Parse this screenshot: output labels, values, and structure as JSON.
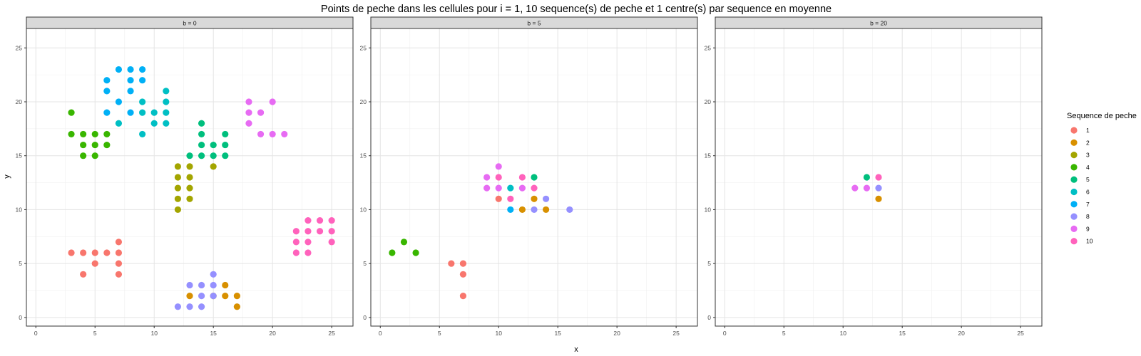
{
  "chart_data": {
    "type": "scatter",
    "title": "Points de peche dans les cellules pour i = 1, 10 sequence(s) de peche et 1 centre(s) par sequence en moyenne",
    "xlabel": "x",
    "ylabel": "y",
    "xlim": [
      -0.8,
      26.8
    ],
    "ylim": [
      -0.8,
      26.8
    ],
    "xticks": [
      0,
      5,
      10,
      15,
      20,
      25
    ],
    "yticks": [
      0,
      5,
      10,
      15,
      20,
      25
    ],
    "grid": true,
    "legend": {
      "title": "Sequence de peche",
      "position": "right"
    },
    "series_colors": {
      "1": "#F8766D",
      "2": "#D89000",
      "3": "#A3A500",
      "4": "#39B600",
      "5": "#00BF7D",
      "6": "#00BFC4",
      "7": "#00B0F6",
      "8": "#9590FF",
      "9": "#E76BF3",
      "10": "#FF62BC"
    },
    "panels": [
      {
        "label": "b = 0",
        "series": [
          {
            "name": "1",
            "points": [
              [
                3,
                6
              ],
              [
                4,
                6
              ],
              [
                5,
                6
              ],
              [
                6,
                6
              ],
              [
                7,
                6
              ],
              [
                4,
                4
              ],
              [
                5,
                5
              ],
              [
                7,
                4
              ],
              [
                7,
                5
              ],
              [
                7,
                7
              ]
            ]
          },
          {
            "name": "2",
            "points": [
              [
                13,
                2
              ],
              [
                15,
                2
              ],
              [
                16,
                2
              ],
              [
                17,
                2
              ],
              [
                16,
                3
              ],
              [
                17,
                1
              ]
            ]
          },
          {
            "name": "3",
            "points": [
              [
                12,
                14
              ],
              [
                12,
                13
              ],
              [
                12,
                12
              ],
              [
                12,
                11
              ],
              [
                12,
                10
              ],
              [
                13,
                14
              ],
              [
                13,
                13
              ],
              [
                13,
                12
              ],
              [
                13,
                11
              ],
              [
                15,
                14
              ]
            ]
          },
          {
            "name": "4",
            "points": [
              [
                3,
                19
              ],
              [
                3,
                17
              ],
              [
                4,
                17
              ],
              [
                5,
                17
              ],
              [
                6,
                17
              ],
              [
                4,
                16
              ],
              [
                5,
                16
              ],
              [
                6,
                16
              ],
              [
                4,
                15
              ],
              [
                5,
                15
              ]
            ]
          },
          {
            "name": "5",
            "points": [
              [
                13,
                15
              ],
              [
                14,
                15
              ],
              [
                15,
                15
              ],
              [
                16,
                15
              ],
              [
                14,
                16
              ],
              [
                15,
                16
              ],
              [
                16,
                16
              ],
              [
                14,
                17
              ],
              [
                16,
                17
              ],
              [
                14,
                18
              ]
            ]
          },
          {
            "name": "6",
            "points": [
              [
                7,
                18
              ],
              [
                9,
                17
              ],
              [
                10,
                18
              ],
              [
                11,
                18
              ],
              [
                9,
                19
              ],
              [
                10,
                19
              ],
              [
                11,
                19
              ],
              [
                9,
                20
              ],
              [
                11,
                20
              ],
              [
                11,
                21
              ]
            ]
          },
          {
            "name": "7",
            "points": [
              [
                6,
                22
              ],
              [
                6,
                21
              ],
              [
                7,
                23
              ],
              [
                8,
                23
              ],
              [
                9,
                23
              ],
              [
                8,
                22
              ],
              [
                9,
                22
              ],
              [
                8,
                21
              ],
              [
                7,
                20
              ],
              [
                6,
                19
              ],
              [
                8,
                19
              ]
            ]
          },
          {
            "name": "8",
            "points": [
              [
                12,
                1
              ],
              [
                13,
                1
              ],
              [
                14,
                1
              ],
              [
                13,
                3
              ],
              [
                14,
                3
              ],
              [
                15,
                3
              ],
              [
                14,
                2
              ],
              [
                15,
                2
              ],
              [
                15,
                4
              ]
            ]
          },
          {
            "name": "9",
            "points": [
              [
                18,
                20
              ],
              [
                20,
                20
              ],
              [
                18,
                19
              ],
              [
                19,
                19
              ],
              [
                18,
                18
              ],
              [
                19,
                17
              ],
              [
                20,
                17
              ],
              [
                21,
                17
              ]
            ]
          },
          {
            "name": "10",
            "points": [
              [
                23,
                9
              ],
              [
                24,
                9
              ],
              [
                25,
                9
              ],
              [
                22,
                8
              ],
              [
                23,
                8
              ],
              [
                24,
                8
              ],
              [
                25,
                8
              ],
              [
                22,
                7
              ],
              [
                23,
                7
              ],
              [
                25,
                7
              ],
              [
                22,
                6
              ],
              [
                23,
                6
              ]
            ]
          }
        ]
      },
      {
        "label": "b = 5",
        "series": [
          {
            "name": "1",
            "points": [
              [
                6,
                5
              ],
              [
                7,
                5
              ],
              [
                7,
                4
              ],
              [
                7,
                2
              ],
              [
                10,
                11
              ]
            ]
          },
          {
            "name": "2",
            "points": [
              [
                12,
                10
              ],
              [
                13,
                11
              ],
              [
                14,
                10
              ]
            ]
          },
          {
            "name": "3",
            "points": []
          },
          {
            "name": "4",
            "points": [
              [
                1,
                6
              ],
              [
                2,
                7
              ],
              [
                3,
                6
              ]
            ]
          },
          {
            "name": "5",
            "points": [
              [
                13,
                13
              ]
            ]
          },
          {
            "name": "6",
            "points": [
              [
                11,
                12
              ]
            ]
          },
          {
            "name": "7",
            "points": [
              [
                11,
                10
              ]
            ]
          },
          {
            "name": "8",
            "points": [
              [
                13,
                10
              ],
              [
                14,
                11
              ],
              [
                16,
                10
              ]
            ]
          },
          {
            "name": "9",
            "points": [
              [
                9,
                13
              ],
              [
                10,
                14
              ],
              [
                9,
                12
              ],
              [
                10,
                12
              ],
              [
                12,
                12
              ]
            ]
          },
          {
            "name": "10",
            "points": [
              [
                10,
                13
              ],
              [
                11,
                11
              ],
              [
                12,
                13
              ],
              [
                13,
                12
              ]
            ]
          }
        ]
      },
      {
        "label": "b = 20",
        "series": [
          {
            "name": "1",
            "points": []
          },
          {
            "name": "2",
            "points": [
              [
                13,
                11
              ]
            ]
          },
          {
            "name": "3",
            "points": []
          },
          {
            "name": "4",
            "points": []
          },
          {
            "name": "5",
            "points": [
              [
                12,
                13
              ]
            ]
          },
          {
            "name": "6",
            "points": []
          },
          {
            "name": "7",
            "points": []
          },
          {
            "name": "8",
            "points": [
              [
                13,
                12
              ]
            ]
          },
          {
            "name": "9",
            "points": [
              [
                11,
                12
              ],
              [
                12,
                12
              ]
            ]
          },
          {
            "name": "10",
            "points": [
              [
                13,
                13
              ]
            ]
          }
        ]
      }
    ]
  }
}
